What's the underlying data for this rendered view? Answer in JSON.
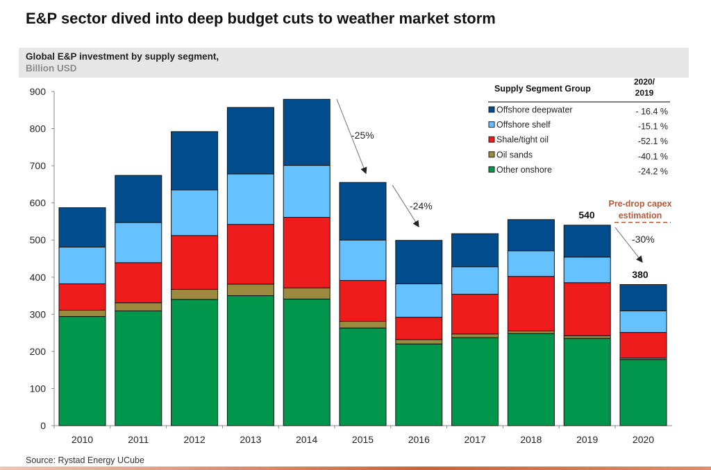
{
  "title": "E&P sector dived into deep budget cuts to weather market storm",
  "source": "Source: Rystad Energy UCube",
  "chart_data": {
    "type": "bar",
    "stacked": true,
    "title": "Global E&P investment by supply segment,",
    "ylabel": "Billion USD",
    "ylim": [
      0,
      900
    ],
    "yticks": [
      0,
      100,
      200,
      300,
      400,
      500,
      600,
      700,
      800,
      900
    ],
    "grid": false,
    "categories": [
      "2010",
      "2011",
      "2012",
      "2013",
      "2014",
      "2015",
      "2016",
      "2017",
      "2018",
      "2019",
      "2020"
    ],
    "series": [
      {
        "name": "Other onshore",
        "color": "#00964b",
        "change": "-24.2 %",
        "values": [
          294,
          309,
          340,
          350,
          341,
          263,
          220,
          237,
          248,
          235,
          178
        ]
      },
      {
        "name": "Oil sands",
        "color": "#9c8a3e",
        "change": "-40.1 %",
        "values": [
          17,
          22,
          27,
          31,
          30,
          18,
          12,
          10,
          7,
          7,
          4
        ]
      },
      {
        "name": "Shale/tight oil",
        "color": "#ee1c1c",
        "change": "-52.1 %",
        "values": [
          71,
          108,
          145,
          161,
          190,
          110,
          60,
          107,
          147,
          143,
          69
        ]
      },
      {
        "name": "Offshore shelf",
        "color": "#66c2ff",
        "change": "-15.1 %",
        "values": [
          99,
          108,
          123,
          136,
          140,
          109,
          90,
          74,
          69,
          69,
          58
        ]
      },
      {
        "name": "Offshore deepwater",
        "color": "#004c8c",
        "change": "- 16.4 %",
        "values": [
          106,
          127,
          157,
          179,
          178,
          155,
          117,
          89,
          84,
          86,
          71
        ]
      }
    ],
    "legend": {
      "position": "top-right",
      "header": "Supply Segment Group",
      "change_header_line1": "2020/",
      "change_header_line2": "2019"
    },
    "annotations": {
      "drop_2015": "-25%",
      "drop_2016": "-24%",
      "drop_2020": "-30%",
      "total_2019": "540",
      "total_2020": "380",
      "pre_drop_line1": "Pre-drop capex",
      "pre_drop_line2": "estimation",
      "pre_drop_value": 540
    }
  }
}
